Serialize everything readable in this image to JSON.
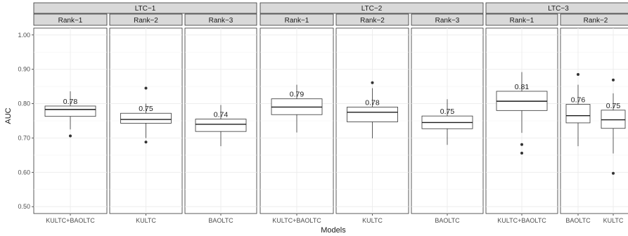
{
  "chart_data": {
    "type": "boxplot",
    "ylabel": "AUC",
    "xlabel": "Models",
    "ylim": [
      0.48,
      1.02
    ],
    "yticks": [
      0.5,
      0.6,
      0.7,
      0.8,
      0.9,
      1.0
    ],
    "ytick_labels": [
      "0.50",
      "0.60",
      "0.70",
      "0.80",
      "0.90",
      "1.00"
    ],
    "grid": true,
    "groups": [
      {
        "label": "LTC−1",
        "panels": [
          {
            "label": "Rank−1",
            "boxes": [
              {
                "category": "KULTC+BAOLTC",
                "q1": 0.763,
                "median": 0.783,
                "q3": 0.793,
                "whisker_low": 0.725,
                "whisker_high": 0.836,
                "outliers": [
                  0.706
                ],
                "mean_label": "0.78"
              }
            ]
          },
          {
            "label": "Rank−2",
            "boxes": [
              {
                "category": "KULTC",
                "q1": 0.743,
                "median": 0.754,
                "q3": 0.772,
                "whisker_low": 0.7,
                "whisker_high": 0.8,
                "outliers": [
                  0.845,
                  0.688
                ],
                "mean_label": "0.75"
              }
            ]
          },
          {
            "label": "Rank−3",
            "boxes": [
              {
                "category": "BAOLTC",
                "q1": 0.719,
                "median": 0.74,
                "q3": 0.755,
                "whisker_low": 0.676,
                "whisker_high": 0.796,
                "outliers": [],
                "mean_label": "0.74"
              }
            ]
          }
        ]
      },
      {
        "label": "LTC−2",
        "panels": [
          {
            "label": "Rank−1",
            "boxes": [
              {
                "category": "KULTC+BAOLTC",
                "q1": 0.768,
                "median": 0.79,
                "q3": 0.814,
                "whisker_low": 0.716,
                "whisker_high": 0.855,
                "outliers": [],
                "mean_label": "0.79"
              }
            ]
          },
          {
            "label": "Rank−2",
            "boxes": [
              {
                "category": "KULTC",
                "q1": 0.747,
                "median": 0.775,
                "q3": 0.79,
                "whisker_low": 0.699,
                "whisker_high": 0.845,
                "outliers": [
                  0.861
                ],
                "mean_label": "0.78"
              }
            ]
          },
          {
            "label": "Rank−3",
            "boxes": [
              {
                "category": "BAOLTC",
                "q1": 0.727,
                "median": 0.745,
                "q3": 0.764,
                "whisker_low": 0.68,
                "whisker_high": 0.813,
                "outliers": [],
                "mean_label": "0.75"
              }
            ]
          }
        ]
      },
      {
        "label": "LTC−3",
        "panels": [
          {
            "label": "Rank−1",
            "boxes": [
              {
                "category": "KULTC+BAOLTC",
                "q1": 0.78,
                "median": 0.807,
                "q3": 0.836,
                "whisker_low": 0.715,
                "whisker_high": 0.892,
                "outliers": [
                  0.681,
                  0.656
                ],
                "mean_label": "0.81"
              }
            ]
          },
          {
            "label": "Rank−2",
            "boxes": [
              {
                "category": "BAOLTC",
                "q1": 0.744,
                "median": 0.765,
                "q3": 0.798,
                "whisker_low": 0.676,
                "whisker_high": 0.855,
                "outliers": [
                  0.885
                ],
                "mean_label": "0.76"
              },
              {
                "category": "KULTC",
                "q1": 0.728,
                "median": 0.753,
                "q3": 0.781,
                "whisker_low": 0.655,
                "whisker_high": 0.83,
                "outliers": [
                  0.869,
                  0.597
                ],
                "mean_label": "0.75"
              }
            ]
          }
        ]
      }
    ]
  }
}
